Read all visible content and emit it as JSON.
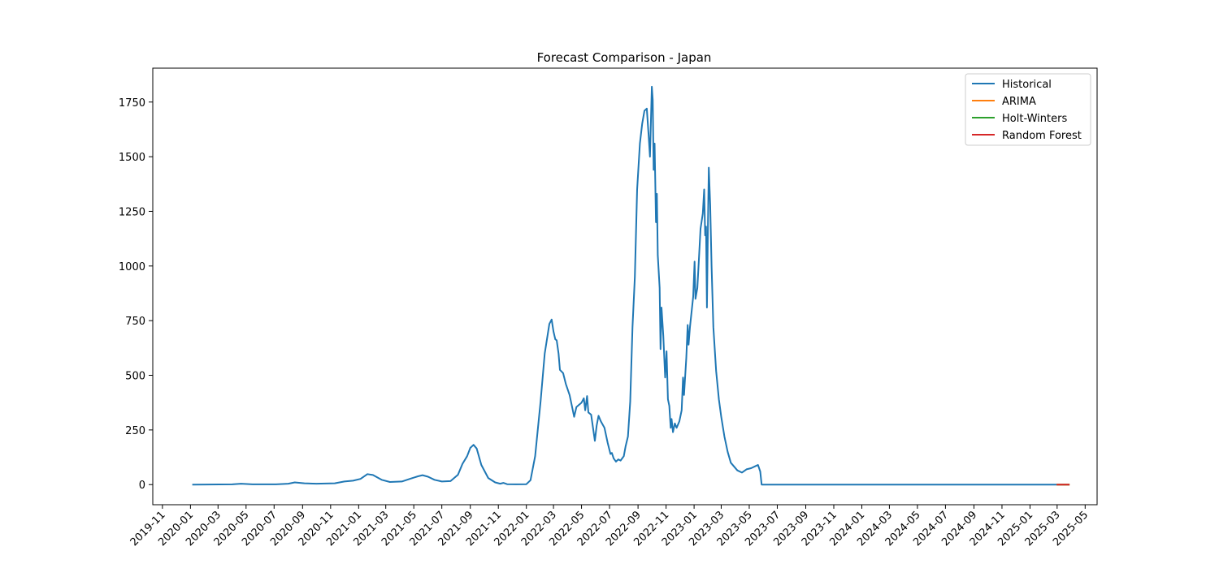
{
  "chart_data": {
    "type": "line",
    "title": "Forecast Comparison - Japan",
    "xlabel": "",
    "ylabel": "",
    "xlim": [
      "2019-10-11",
      "2025-05-27"
    ],
    "ylim": [
      -92,
      1905
    ],
    "yticks": [
      0,
      250,
      500,
      750,
      1000,
      1250,
      1500,
      1750
    ],
    "xticks": [
      "2019-11",
      "2020-01",
      "2020-03",
      "2020-05",
      "2020-07",
      "2020-09",
      "2020-11",
      "2021-01",
      "2021-03",
      "2021-05",
      "2021-07",
      "2021-09",
      "2021-11",
      "2022-01",
      "2022-03",
      "2022-05",
      "2022-07",
      "2022-09",
      "2022-11",
      "2023-01",
      "2023-03",
      "2023-05",
      "2023-07",
      "2023-09",
      "2023-11",
      "2024-01",
      "2024-03",
      "2024-05",
      "2024-07",
      "2024-09",
      "2024-11",
      "2025-01",
      "2025-03",
      "2025-05"
    ],
    "grid": false,
    "legend_position": "top-right",
    "series": [
      {
        "name": "Historical",
        "color": "#1f77b4",
        "points": [
          [
            "2020-01-05",
            0
          ],
          [
            "2020-04-01",
            1
          ],
          [
            "2020-04-20",
            4
          ],
          [
            "2020-05-15",
            1
          ],
          [
            "2020-07-05",
            1
          ],
          [
            "2020-08-01",
            4
          ],
          [
            "2020-08-15",
            10
          ],
          [
            "2020-09-05",
            6
          ],
          [
            "2020-10-01",
            4
          ],
          [
            "2020-11-10",
            6
          ],
          [
            "2020-12-01",
            14
          ],
          [
            "2020-12-20",
            18
          ],
          [
            "2021-01-05",
            26
          ],
          [
            "2021-01-20",
            48
          ],
          [
            "2021-02-01",
            44
          ],
          [
            "2021-02-20",
            22
          ],
          [
            "2021-03-10",
            12
          ],
          [
            "2021-04-05",
            14
          ],
          [
            "2021-04-25",
            28
          ],
          [
            "2021-05-10",
            38
          ],
          [
            "2021-05-20",
            43
          ],
          [
            "2021-06-01",
            36
          ],
          [
            "2021-06-15",
            22
          ],
          [
            "2021-07-01",
            14
          ],
          [
            "2021-07-20",
            16
          ],
          [
            "2021-08-05",
            45
          ],
          [
            "2021-08-15",
            95
          ],
          [
            "2021-08-25",
            130
          ],
          [
            "2021-09-01",
            168
          ],
          [
            "2021-09-08",
            182
          ],
          [
            "2021-09-15",
            165
          ],
          [
            "2021-09-25",
            90
          ],
          [
            "2021-10-10",
            30
          ],
          [
            "2021-10-25",
            10
          ],
          [
            "2021-11-05",
            4
          ],
          [
            "2021-11-12",
            8
          ],
          [
            "2021-11-20",
            2
          ],
          [
            "2021-12-10",
            1
          ],
          [
            "2022-01-01",
            2
          ],
          [
            "2022-01-10",
            20
          ],
          [
            "2022-01-20",
            130
          ],
          [
            "2022-02-01",
            380
          ],
          [
            "2022-02-10",
            600
          ],
          [
            "2022-02-20",
            735
          ],
          [
            "2022-02-25",
            755
          ],
          [
            "2022-03-01",
            700
          ],
          [
            "2022-03-05",
            665
          ],
          [
            "2022-03-08",
            660
          ],
          [
            "2022-03-12",
            600
          ],
          [
            "2022-03-15",
            525
          ],
          [
            "2022-03-22",
            510
          ],
          [
            "2022-03-28",
            460
          ],
          [
            "2022-04-05",
            410
          ],
          [
            "2022-04-10",
            360
          ],
          [
            "2022-04-15",
            310
          ],
          [
            "2022-04-20",
            355
          ],
          [
            "2022-05-01",
            375
          ],
          [
            "2022-05-06",
            395
          ],
          [
            "2022-05-09",
            340
          ],
          [
            "2022-05-13",
            405
          ],
          [
            "2022-05-16",
            330
          ],
          [
            "2022-05-22",
            320
          ],
          [
            "2022-05-30",
            200
          ],
          [
            "2022-06-03",
            270
          ],
          [
            "2022-06-07",
            315
          ],
          [
            "2022-06-12",
            290
          ],
          [
            "2022-06-20",
            260
          ],
          [
            "2022-06-27",
            190
          ],
          [
            "2022-07-03",
            140
          ],
          [
            "2022-07-06",
            145
          ],
          [
            "2022-07-10",
            120
          ],
          [
            "2022-07-15",
            105
          ],
          [
            "2022-07-20",
            115
          ],
          [
            "2022-07-25",
            110
          ],
          [
            "2022-08-01",
            130
          ],
          [
            "2022-08-05",
            175
          ],
          [
            "2022-08-10",
            220
          ],
          [
            "2022-08-15",
            380
          ],
          [
            "2022-08-20",
            720
          ],
          [
            "2022-08-25",
            950
          ],
          [
            "2022-08-30",
            1350
          ],
          [
            "2022-09-05",
            1560
          ],
          [
            "2022-09-10",
            1650
          ],
          [
            "2022-09-15",
            1710
          ],
          [
            "2022-09-20",
            1720
          ],
          [
            "2022-09-24",
            1600
          ],
          [
            "2022-09-27",
            1500
          ],
          [
            "2022-10-01",
            1820
          ],
          [
            "2022-10-03",
            1760
          ],
          [
            "2022-10-05",
            1440
          ],
          [
            "2022-10-07",
            1560
          ],
          [
            "2022-10-10",
            1200
          ],
          [
            "2022-10-12",
            1330
          ],
          [
            "2022-10-14",
            1050
          ],
          [
            "2022-10-18",
            900
          ],
          [
            "2022-10-20",
            620
          ],
          [
            "2022-10-22",
            810
          ],
          [
            "2022-10-26",
            680
          ],
          [
            "2022-10-30",
            490
          ],
          [
            "2022-11-02",
            610
          ],
          [
            "2022-11-05",
            390
          ],
          [
            "2022-11-08",
            360
          ],
          [
            "2022-11-11",
            260
          ],
          [
            "2022-11-13",
            300
          ],
          [
            "2022-11-16",
            240
          ],
          [
            "2022-11-20",
            280
          ],
          [
            "2022-11-24",
            260
          ],
          [
            "2022-11-30",
            290
          ],
          [
            "2022-12-05",
            340
          ],
          [
            "2022-12-08",
            490
          ],
          [
            "2022-12-10",
            410
          ],
          [
            "2022-12-15",
            580
          ],
          [
            "2022-12-18",
            730
          ],
          [
            "2022-12-20",
            640
          ],
          [
            "2022-12-23",
            720
          ],
          [
            "2022-12-26",
            780
          ],
          [
            "2022-12-30",
            860
          ],
          [
            "2023-01-02",
            1020
          ],
          [
            "2023-01-04",
            850
          ],
          [
            "2023-01-08",
            900
          ],
          [
            "2023-01-12",
            1050
          ],
          [
            "2023-01-15",
            1170
          ],
          [
            "2023-01-20",
            1240
          ],
          [
            "2023-01-23",
            1350
          ],
          [
            "2023-01-25",
            1140
          ],
          [
            "2023-01-27",
            1180
          ],
          [
            "2023-01-29",
            810
          ],
          [
            "2023-01-31",
            1180
          ],
          [
            "2023-02-02",
            1450
          ],
          [
            "2023-02-05",
            1280
          ],
          [
            "2023-02-08",
            1000
          ],
          [
            "2023-02-12",
            720
          ],
          [
            "2023-02-18",
            520
          ],
          [
            "2023-02-24",
            390
          ],
          [
            "2023-03-01",
            310
          ],
          [
            "2023-03-08",
            220
          ],
          [
            "2023-03-15",
            150
          ],
          [
            "2023-03-22",
            100
          ],
          [
            "2023-03-30",
            80
          ],
          [
            "2023-04-05",
            65
          ],
          [
            "2023-04-15",
            55
          ],
          [
            "2023-04-25",
            70
          ],
          [
            "2023-05-05",
            75
          ],
          [
            "2023-05-15",
            85
          ],
          [
            "2023-05-20",
            90
          ],
          [
            "2023-05-25",
            60
          ],
          [
            "2023-05-28",
            0
          ],
          [
            "2025-02-28",
            0
          ]
        ]
      },
      {
        "name": "ARIMA",
        "color": "#ff7f0e",
        "points": [
          [
            "2025-02-28",
            0
          ],
          [
            "2025-03-28",
            0
          ]
        ]
      },
      {
        "name": "Holt-Winters",
        "color": "#2ca02c",
        "points": [
          [
            "2025-02-28",
            0
          ],
          [
            "2025-03-28",
            0
          ]
        ]
      },
      {
        "name": "Random Forest",
        "color": "#d62728",
        "points": [
          [
            "2025-02-28",
            0
          ],
          [
            "2025-03-28",
            0
          ]
        ]
      }
    ]
  }
}
